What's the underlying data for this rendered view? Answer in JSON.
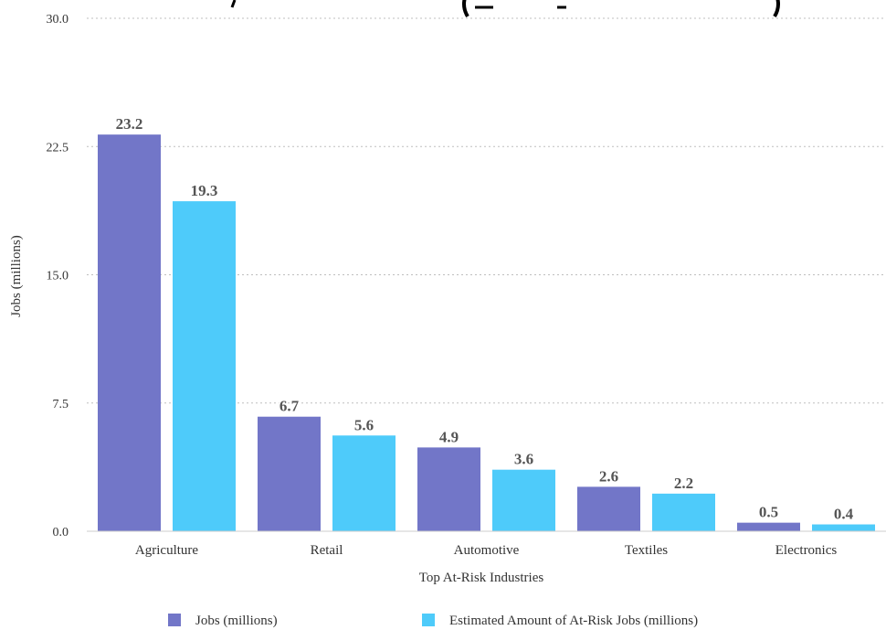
{
  "chart_data": {
    "type": "bar",
    "title": "",
    "xlabel": "Top At-Risk Industries",
    "ylabel": "Jobs (millions)",
    "ylim": [
      0,
      30
    ],
    "yticks": [
      "0.0",
      "7.5",
      "15.0",
      "22.5",
      "30.0"
    ],
    "grid": true,
    "legend_position": "bottom",
    "categories": [
      "Agriculture",
      "Retail",
      "Automotive",
      "Textiles",
      "Electronics"
    ],
    "series": [
      {
        "name": "Jobs (millions)",
        "color": "#7276c8",
        "values": [
          23.2,
          6.7,
          4.9,
          2.6,
          0.5
        ],
        "labels": [
          "23.2",
          "6.7",
          "4.9",
          "2.6",
          "0.5"
        ]
      },
      {
        "name": "Estimated Amount of At-Risk Jobs (millions)",
        "color": "#4ecbfa",
        "values": [
          19.3,
          5.6,
          3.6,
          2.2,
          0.4
        ],
        "labels": [
          "19.3",
          "5.6",
          "3.6",
          "2.2",
          "0.4"
        ]
      }
    ]
  }
}
